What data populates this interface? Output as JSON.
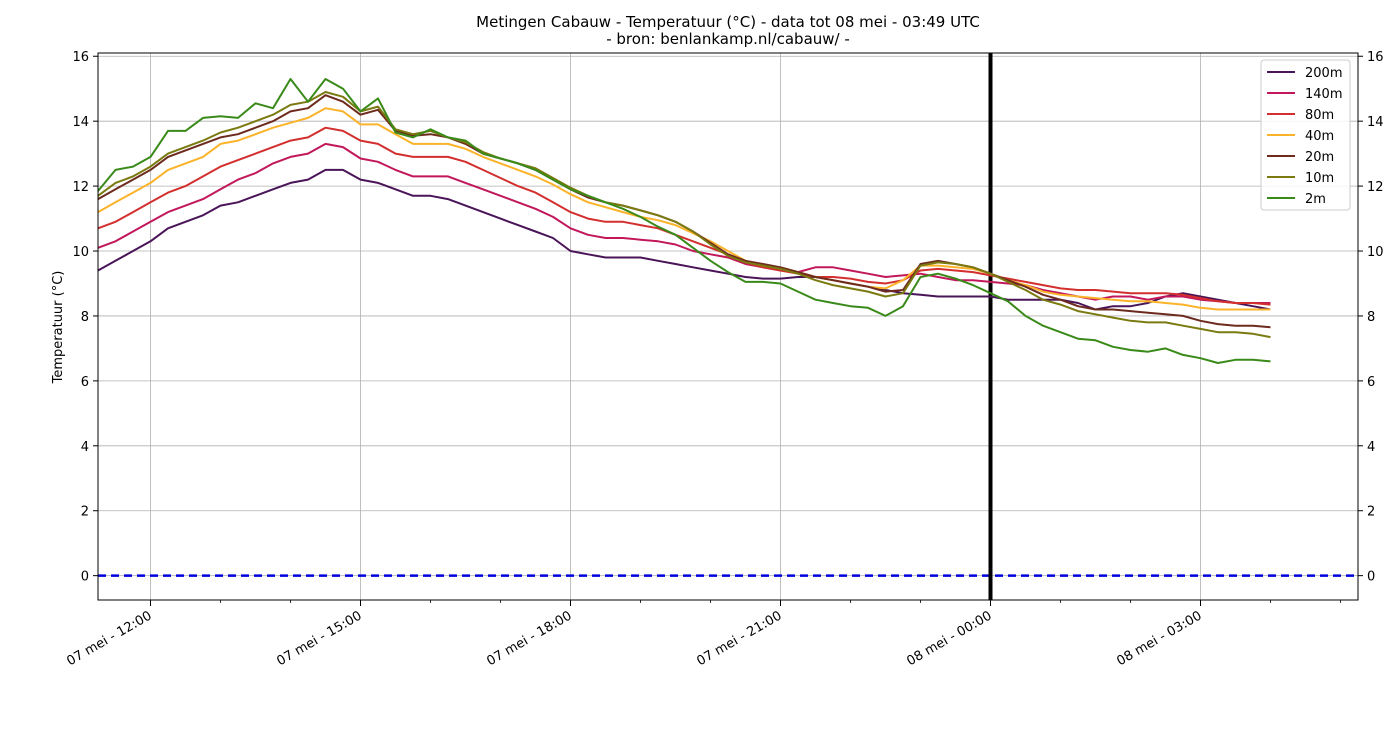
{
  "chart_data": {
    "type": "line",
    "title": "Metingen Cabauw - Temperatuur (°C) - data tot 08 mei - 03:49 UTC",
    "subtitle": "- bron: benlankamp.nl/cabauw/ -",
    "xlabel": "",
    "ylabel": "Temperatuur (°C)",
    "x_unit": "hours since 07 mei 00:00 UTC",
    "xlim": [
      11.25,
      29.25
    ],
    "ylim": [
      -0.75,
      16.1
    ],
    "y_ticks": [
      0,
      2,
      4,
      6,
      8,
      10,
      12,
      14,
      16
    ],
    "x_ticks": [
      {
        "x": 12,
        "label": "07 mei - 12:00"
      },
      {
        "x": 15,
        "label": "07 mei - 15:00"
      },
      {
        "x": 18,
        "label": "07 mei - 18:00"
      },
      {
        "x": 21,
        "label": "07 mei - 21:00"
      },
      {
        "x": 24,
        "label": "08 mei - 00:00"
      },
      {
        "x": 27,
        "label": "08 mei - 03:00"
      }
    ],
    "grid": true,
    "legend_position": "top-right",
    "reference_lines": {
      "zero_line": {
        "y": 0,
        "color": "#0000dd",
        "style": "dashed"
      },
      "vertical_line": {
        "x": 24,
        "color": "#000000"
      }
    },
    "x": [
      11.25,
      11.5,
      11.75,
      12.0,
      12.25,
      12.5,
      12.75,
      13.0,
      13.25,
      13.5,
      13.75,
      14.0,
      14.25,
      14.5,
      14.75,
      15.0,
      15.25,
      15.5,
      15.75,
      16.0,
      16.25,
      16.5,
      16.75,
      17.0,
      17.25,
      17.5,
      17.75,
      18.0,
      18.25,
      18.5,
      18.75,
      19.0,
      19.25,
      19.5,
      19.75,
      20.0,
      20.25,
      20.5,
      20.75,
      21.0,
      21.25,
      21.5,
      21.75,
      22.0,
      22.25,
      22.5,
      22.75,
      23.0,
      23.25,
      23.5,
      23.75,
      24.0,
      24.25,
      24.5,
      24.75,
      25.0,
      25.25,
      25.5,
      25.75,
      26.0,
      26.25,
      26.5,
      26.75,
      27.0,
      27.25,
      27.5,
      27.75,
      28.0
    ],
    "series": [
      {
        "name": "200m",
        "color": "#4a1458",
        "values": [
          9.4,
          9.7,
          10.0,
          10.3,
          10.7,
          10.9,
          11.1,
          11.4,
          11.5,
          11.7,
          11.9,
          12.1,
          12.2,
          12.5,
          12.5,
          12.2,
          12.1,
          11.9,
          11.7,
          11.7,
          11.6,
          11.4,
          11.2,
          11.0,
          10.8,
          10.6,
          10.4,
          10.0,
          9.9,
          9.8,
          9.8,
          9.8,
          9.7,
          9.6,
          9.5,
          9.4,
          9.3,
          9.2,
          9.15,
          9.15,
          9.2,
          9.2,
          9.1,
          9.0,
          8.9,
          8.8,
          8.7,
          8.65,
          8.6,
          8.6,
          8.6,
          8.6,
          8.5,
          8.5,
          8.5,
          8.5,
          8.4,
          8.2,
          8.3,
          8.3,
          8.4,
          8.6,
          8.7,
          8.6,
          8.5,
          8.4,
          8.3,
          8.2
        ]
      },
      {
        "name": "140m",
        "color": "#c2185b",
        "values": [
          10.1,
          10.3,
          10.6,
          10.9,
          11.2,
          11.4,
          11.6,
          11.9,
          12.2,
          12.4,
          12.7,
          12.9,
          13.0,
          13.3,
          13.2,
          12.85,
          12.75,
          12.5,
          12.3,
          12.3,
          12.3,
          12.1,
          11.9,
          11.7,
          11.5,
          11.3,
          11.05,
          10.7,
          10.5,
          10.4,
          10.4,
          10.35,
          10.3,
          10.2,
          10.0,
          9.9,
          9.8,
          9.6,
          9.5,
          9.4,
          9.35,
          9.5,
          9.5,
          9.4,
          9.3,
          9.2,
          9.25,
          9.3,
          9.2,
          9.1,
          9.1,
          9.05,
          9.0,
          8.95,
          8.8,
          8.7,
          8.6,
          8.5,
          8.6,
          8.6,
          8.5,
          8.6,
          8.6,
          8.5,
          8.45,
          8.4,
          8.4,
          8.4
        ]
      },
      {
        "name": "80m",
        "color": "#d32f2f",
        "values": [
          10.7,
          10.9,
          11.2,
          11.5,
          11.8,
          12.0,
          12.3,
          12.6,
          12.8,
          13.0,
          13.2,
          13.4,
          13.5,
          13.8,
          13.7,
          13.4,
          13.3,
          13.0,
          12.9,
          12.9,
          12.9,
          12.75,
          12.5,
          12.25,
          12.0,
          11.8,
          11.5,
          11.2,
          11.0,
          10.9,
          10.9,
          10.8,
          10.7,
          10.5,
          10.3,
          10.1,
          9.9,
          9.65,
          9.5,
          9.4,
          9.3,
          9.2,
          9.2,
          9.15,
          9.05,
          9.0,
          9.1,
          9.4,
          9.45,
          9.4,
          9.35,
          9.25,
          9.15,
          9.05,
          8.95,
          8.85,
          8.8,
          8.8,
          8.75,
          8.7,
          8.7,
          8.7,
          8.65,
          8.55,
          8.45,
          8.4,
          8.4,
          8.35
        ]
      },
      {
        "name": "40m",
        "color": "#fbb32a",
        "values": [
          11.2,
          11.5,
          11.8,
          12.1,
          12.5,
          12.7,
          12.9,
          13.3,
          13.4,
          13.6,
          13.8,
          13.95,
          14.1,
          14.4,
          14.3,
          13.9,
          13.9,
          13.6,
          13.3,
          13.3,
          13.3,
          13.15,
          12.9,
          12.7,
          12.5,
          12.3,
          12.05,
          11.75,
          11.5,
          11.35,
          11.2,
          11.05,
          10.95,
          10.8,
          10.55,
          10.3,
          10.0,
          9.7,
          9.55,
          9.5,
          9.35,
          9.2,
          9.1,
          9.0,
          8.9,
          8.85,
          9.1,
          9.55,
          9.55,
          9.5,
          9.45,
          9.3,
          9.1,
          8.95,
          8.75,
          8.65,
          8.6,
          8.55,
          8.5,
          8.45,
          8.45,
          8.4,
          8.35,
          8.25,
          8.2,
          8.2,
          8.2,
          8.2
        ]
      },
      {
        "name": "20m",
        "color": "#6d2b1e",
        "values": [
          11.6,
          11.9,
          12.2,
          12.5,
          12.9,
          13.1,
          13.3,
          13.5,
          13.6,
          13.8,
          14.0,
          14.3,
          14.4,
          14.8,
          14.6,
          14.2,
          14.35,
          13.7,
          13.55,
          13.6,
          13.5,
          13.3,
          13.0,
          12.85,
          12.7,
          12.5,
          12.2,
          11.9,
          11.65,
          11.5,
          11.4,
          11.25,
          11.1,
          10.9,
          10.6,
          10.25,
          9.9,
          9.7,
          9.6,
          9.5,
          9.35,
          9.2,
          9.1,
          9.0,
          8.9,
          8.75,
          8.8,
          9.6,
          9.7,
          9.6,
          9.5,
          9.3,
          9.1,
          8.9,
          8.65,
          8.5,
          8.3,
          8.2,
          8.2,
          8.15,
          8.1,
          8.05,
          8.0,
          7.85,
          7.75,
          7.7,
          7.7,
          7.65
        ]
      },
      {
        "name": "10m",
        "color": "#7a7a10",
        "values": [
          11.7,
          12.1,
          12.3,
          12.6,
          13.0,
          13.2,
          13.4,
          13.65,
          13.8,
          14.0,
          14.2,
          14.5,
          14.6,
          14.9,
          14.75,
          14.3,
          14.45,
          13.75,
          13.6,
          13.7,
          13.5,
          13.35,
          13.05,
          12.85,
          12.7,
          12.55,
          12.25,
          11.95,
          11.7,
          11.5,
          11.4,
          11.25,
          11.1,
          10.9,
          10.6,
          10.2,
          9.85,
          9.65,
          9.55,
          9.45,
          9.3,
          9.1,
          8.95,
          8.85,
          8.75,
          8.6,
          8.7,
          9.55,
          9.65,
          9.6,
          9.5,
          9.3,
          9.05,
          8.8,
          8.5,
          8.35,
          8.15,
          8.05,
          7.95,
          7.85,
          7.8,
          7.8,
          7.7,
          7.6,
          7.5,
          7.5,
          7.45,
          7.35
        ]
      },
      {
        "name": "2m",
        "color": "#3a8a1a",
        "values": [
          11.85,
          12.5,
          12.6,
          12.9,
          13.7,
          13.7,
          14.1,
          14.15,
          14.1,
          14.55,
          14.4,
          15.3,
          14.6,
          15.3,
          15.0,
          14.3,
          14.7,
          13.65,
          13.5,
          13.75,
          13.5,
          13.4,
          13.0,
          12.85,
          12.7,
          12.5,
          12.2,
          11.9,
          11.7,
          11.5,
          11.3,
          11.05,
          10.75,
          10.5,
          10.1,
          9.7,
          9.35,
          9.05,
          9.05,
          9.0,
          8.75,
          8.5,
          8.4,
          8.3,
          8.25,
          8.0,
          8.3,
          9.2,
          9.3,
          9.15,
          8.95,
          8.7,
          8.45,
          8.0,
          7.7,
          7.5,
          7.3,
          7.25,
          7.05,
          6.95,
          6.9,
          7.0,
          6.8,
          6.7,
          6.55,
          6.65,
          6.65,
          6.6
        ]
      }
    ]
  }
}
